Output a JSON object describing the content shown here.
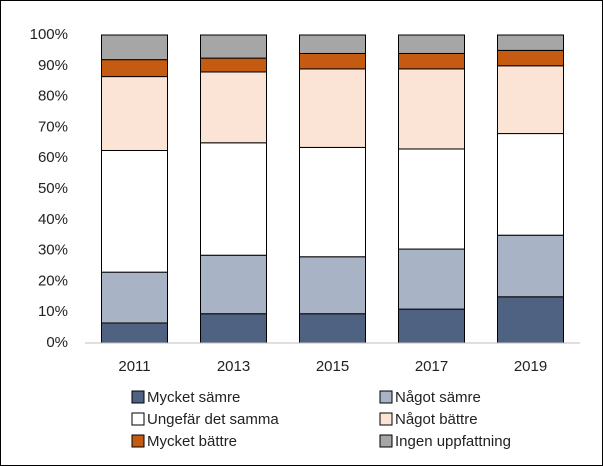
{
  "chart_data": {
    "type": "stacked_bar",
    "categories": [
      "2011",
      "2013",
      "2015",
      "2017",
      "2019"
    ],
    "series": [
      {
        "name": "Mycket sämre",
        "color": "#4f6282",
        "values": [
          6.5,
          9.5,
          9.5,
          11,
          15
        ]
      },
      {
        "name": "Något sämre",
        "color": "#a9b3c6",
        "values": [
          16.5,
          19,
          18.5,
          19.5,
          20
        ]
      },
      {
        "name": "Ungefär det samma",
        "color": "#ffffff",
        "values": [
          39.5,
          36.5,
          35.5,
          32.5,
          33
        ]
      },
      {
        "name": "Något bättre",
        "color": "#fbe4d5",
        "values": [
          24,
          23,
          25.5,
          26,
          22
        ]
      },
      {
        "name": "Mycket bättre",
        "color": "#c55a11",
        "values": [
          5.5,
          4.5,
          5,
          5,
          5
        ]
      },
      {
        "name": "Ingen uppfattning",
        "color": "#a6a6a6",
        "values": [
          8,
          7.5,
          6,
          6,
          5
        ]
      }
    ],
    "ylim": [
      0,
      100
    ],
    "yticks": [
      {
        "value": 0,
        "label": "0%"
      },
      {
        "value": 10,
        "label": "10%"
      },
      {
        "value": 20,
        "label": "20%"
      },
      {
        "value": 30,
        "label": "30%"
      },
      {
        "value": 40,
        "label": "40%"
      },
      {
        "value": 50,
        "label": "50%"
      },
      {
        "value": 60,
        "label": "60%"
      },
      {
        "value": 70,
        "label": "70%"
      },
      {
        "value": 80,
        "label": "80%"
      },
      {
        "value": 90,
        "label": "90%"
      },
      {
        "value": 100,
        "label": "100%"
      }
    ],
    "grid": false,
    "legend": "bottom"
  }
}
